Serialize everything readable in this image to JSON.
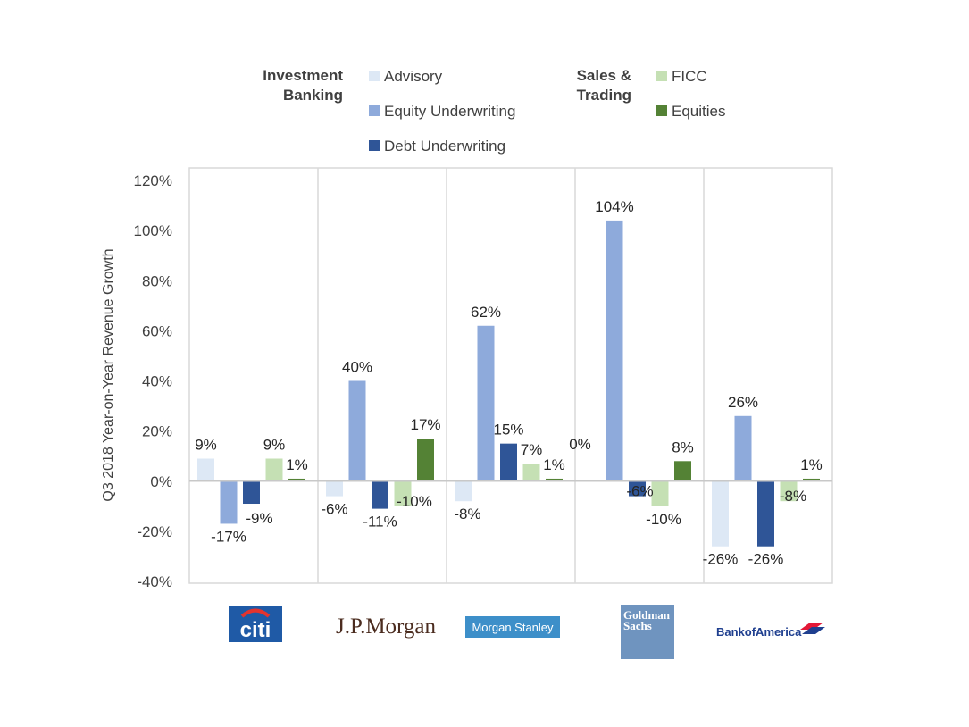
{
  "chart_data": {
    "type": "bar",
    "ylabel": "Q3 2018 Year-on-Year Revenue Growth",
    "ylim": [
      -40,
      120
    ],
    "yticks": [
      -40,
      -20,
      0,
      20,
      40,
      60,
      80,
      100,
      120
    ],
    "ytick_labels": [
      "-40%",
      "-20%",
      "0%",
      "20%",
      "40%",
      "60%",
      "80%",
      "100%",
      "120%"
    ],
    "categories": [
      "Citi",
      "J.P. Morgan",
      "Morgan Stanley",
      "Goldman Sachs",
      "Bank of America"
    ],
    "legend_groups": [
      {
        "title": "Investment Banking",
        "series": [
          "Advisory",
          "Equity Underwriting",
          "Debt Underwriting"
        ]
      },
      {
        "title": "Sales & Trading",
        "series": [
          "FICC",
          "Equities"
        ]
      }
    ],
    "series": [
      {
        "name": "Advisory",
        "color": "#dde8f5",
        "values": [
          9,
          -6,
          -8,
          0,
          -26
        ],
        "labels": [
          "9%",
          "-6%",
          "-8%",
          "0%",
          "-26%"
        ]
      },
      {
        "name": "Equity Underwriting",
        "color": "#8eaadb",
        "values": [
          -17,
          40,
          62,
          104,
          26
        ],
        "labels": [
          "-17%",
          "40%",
          "62%",
          "104%",
          "26%"
        ]
      },
      {
        "name": "Debt Underwriting",
        "color": "#2f5597",
        "values": [
          -9,
          -11,
          15,
          -6,
          -26
        ],
        "labels": [
          "-9%",
          "-11%",
          "15%",
          "-6%",
          "-26%"
        ]
      },
      {
        "name": "FICC",
        "color": "#c5e0b4",
        "values": [
          9,
          -10,
          7,
          -10,
          -8
        ],
        "labels": [
          "9%",
          "-10%",
          "7%",
          "-10%",
          "-8%"
        ]
      },
      {
        "name": "Equities",
        "color": "#548235",
        "values": [
          1,
          17,
          1,
          8,
          1
        ],
        "labels": [
          "1%",
          "17%",
          "1%",
          "8%",
          "1%"
        ]
      }
    ]
  },
  "logos": {
    "citi": "citi",
    "jpmorgan": "J.P.Morgan",
    "morganstanley": "Morgan Stanley",
    "goldman_line1": "Goldman",
    "goldman_line2": "Sachs",
    "bofa": "BankofAmerica"
  }
}
